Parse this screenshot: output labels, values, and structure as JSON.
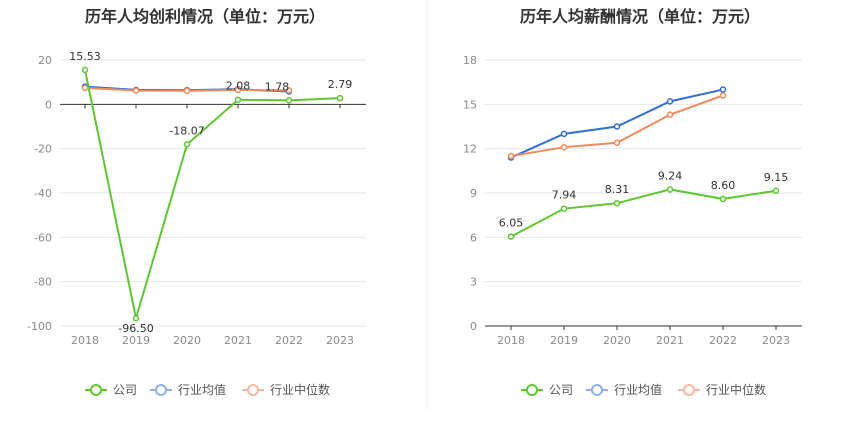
{
  "colors": {
    "company": "#5dc72e",
    "industry_avg": "#2f6fd6",
    "industry_median": "#f08a5d",
    "legend_avg": "#8fb0ea",
    "legend_median": "#f5b89e",
    "grid": "#e6e6e6",
    "axis": "#333333"
  },
  "legend": [
    "公司",
    "行业均值",
    "行业中位数"
  ],
  "chart_data": [
    {
      "type": "line",
      "title": "历年人均创利情况（单位：万元）",
      "categories": [
        "2018",
        "2019",
        "2020",
        "2021",
        "2022",
        "2023"
      ],
      "ylim": [
        -100,
        20
      ],
      "yticks": [
        "20",
        "0",
        "-20",
        "-40",
        "-60",
        "-80",
        "-100"
      ],
      "grid": true,
      "legend_position": "bottom",
      "series": [
        {
          "name": "公司",
          "values": [
            15.53,
            -96.5,
            -18.07,
            2.08,
            1.78,
            2.79
          ],
          "labels": [
            "15.53",
            "-96.50",
            "-18.07",
            "2.08",
            "1.78",
            "2.79"
          ]
        },
        {
          "name": "行业均值",
          "values": [
            8.0,
            6.5,
            6.4,
            6.8,
            5.8,
            null
          ]
        },
        {
          "name": "行业中位数",
          "values": [
            7.4,
            6.2,
            6.1,
            6.5,
            6.3,
            null
          ]
        }
      ]
    },
    {
      "type": "line",
      "title": "历年人均薪酬情况（单位：万元）",
      "categories": [
        "2018",
        "2019",
        "2020",
        "2021",
        "2022",
        "2023"
      ],
      "ylim": [
        0,
        18
      ],
      "yticks": [
        "18",
        "15",
        "12",
        "9",
        "6",
        "3",
        "0"
      ],
      "grid": true,
      "legend_position": "bottom",
      "series": [
        {
          "name": "公司",
          "values": [
            6.05,
            7.94,
            8.31,
            9.24,
            8.6,
            9.15
          ],
          "labels": [
            "6.05",
            "7.94",
            "8.31",
            "9.24",
            "8.60",
            "9.15"
          ]
        },
        {
          "name": "行业均值",
          "values": [
            11.4,
            13.0,
            13.5,
            15.2,
            16.0,
            null
          ]
        },
        {
          "name": "行业中位数",
          "values": [
            11.5,
            12.1,
            12.4,
            14.3,
            15.6,
            null
          ]
        }
      ]
    }
  ]
}
